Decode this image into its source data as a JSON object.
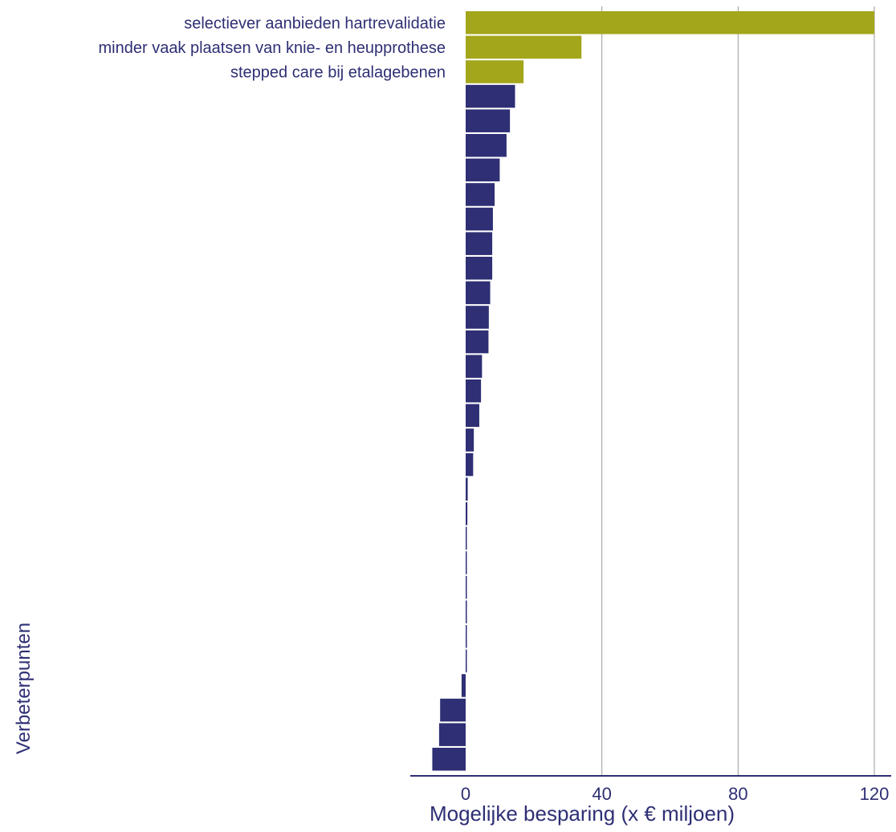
{
  "chart_data": {
    "type": "bar",
    "orientation": "horizontal",
    "xlabel": "Mogelijke besparing (x € miljoen)",
    "ylabel": "Verbeterpunten",
    "xlim": [
      -16,
      121
    ],
    "xticks": [
      0,
      40,
      80,
      120
    ],
    "grid": "vertical",
    "categories": [
      "selectiever aanbieden hartrevalidatie",
      "minder vaak plaatsen van knie- en heupprothese",
      "stepped care bij etalagebenen",
      "",
      "",
      "",
      "",
      "",
      "",
      "",
      "",
      "",
      "",
      "",
      "",
      "",
      "",
      "",
      "",
      "",
      "",
      "",
      "",
      "",
      "",
      "",
      "",
      "",
      "",
      "",
      ""
    ],
    "values": [
      120,
      34,
      17,
      14.5,
      13,
      12,
      10,
      8.5,
      8,
      7.8,
      7.8,
      7.2,
      6.8,
      6.7,
      4.8,
      4.5,
      4,
      2.4,
      2.2,
      0.6,
      0.5,
      0.1,
      0.1,
      0.1,
      0.1,
      0.1,
      0.1,
      -1.2,
      -7.5,
      -7.8,
      -9.8
    ],
    "colors": {
      "highlight": "#a3a51a",
      "default": "#2e2f74",
      "grid": "#9a9a9a",
      "axis": "#2e2f74",
      "text": "#2e2f74"
    },
    "highlight_count": 3
  }
}
